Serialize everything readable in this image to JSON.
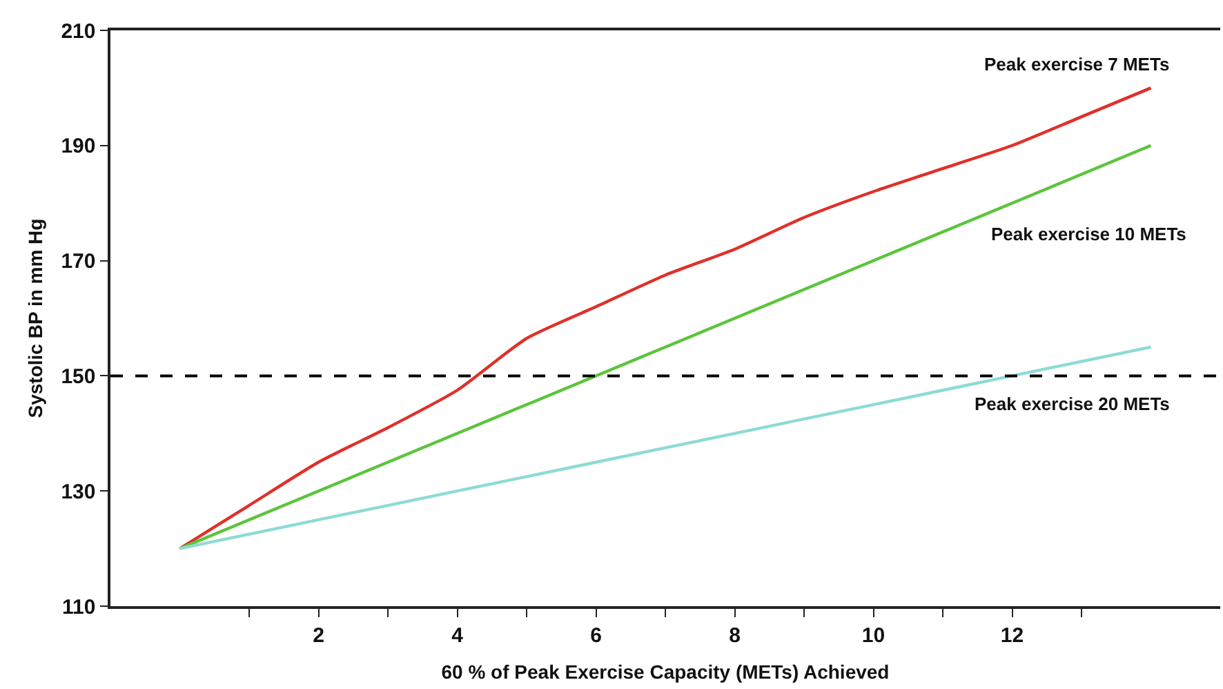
{
  "chart_data": {
    "type": "line",
    "xlabel": "60 % of Peak Exercise Capacity (METs) Achieved",
    "ylabel": "Systolic BP in mm Hg",
    "x": [
      0,
      1,
      2,
      3,
      4,
      5,
      6,
      7,
      8,
      9,
      10,
      11,
      12,
      13,
      14
    ],
    "series": [
      {
        "name": "Peak exercise 7 METs",
        "color": "#e0302a",
        "values": [
          120,
          127.5,
          135,
          141,
          147.5,
          156.5,
          162,
          167.5,
          172,
          177.5,
          182,
          186,
          190,
          195,
          200
        ]
      },
      {
        "name": "Peak exercise 10 METs",
        "color": "#5cc43c",
        "x": [
          0,
          14
        ],
        "values": [
          120,
          190
        ]
      },
      {
        "name": "Peak exercise 20 METs",
        "color": "#8ddbd5",
        "x": [
          0,
          2,
          4,
          6,
          8,
          10,
          12,
          14
        ],
        "values": [
          120,
          125,
          130,
          135,
          140,
          145,
          150,
          155
        ]
      }
    ],
    "xlim": [
      -1,
      15
    ],
    "xticks": [
      {
        "value": 1,
        "label": null
      },
      2,
      {
        "value": 3,
        "label": null
      },
      4,
      {
        "value": 5,
        "label": null
      },
      6,
      {
        "value": 7,
        "label": null
      },
      8,
      {
        "value": 9,
        "label": null
      },
      10,
      {
        "value": 11,
        "label": null
      },
      12,
      {
        "value": 13,
        "label": null
      }
    ],
    "ylim": [
      110,
      210
    ],
    "yticks": [
      110,
      130,
      150,
      170,
      190,
      210
    ],
    "ref_lines": [
      {
        "axis": "y",
        "value": 150,
        "color": "#000000",
        "line_style": "dashed"
      }
    ],
    "legend": false,
    "marker": "none",
    "line_style": "solid"
  }
}
